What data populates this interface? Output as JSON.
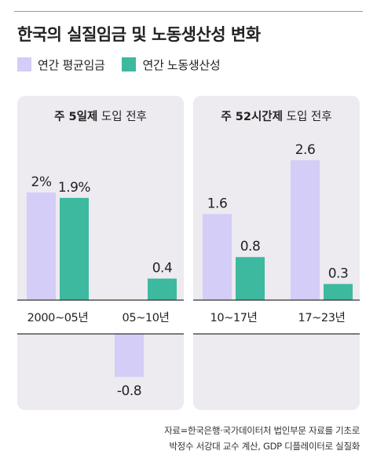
{
  "title": "한국의 실질임금 및 노동생산성 변화",
  "colors": {
    "wage": "#d3cdf7",
    "productivity": "#3db99f",
    "panel": "#edeaf0",
    "axis": "#333333"
  },
  "source": {
    "line1": "자료=한국은행·국가데이터처 법인부문 자료를 기초로",
    "line2": "박정수 서강대 교수 계산, GDP 디플레이터로 실질화"
  },
  "chart_data": {
    "type": "bar",
    "title": "한국의 실질임금 및 노동생산성 변화",
    "legend": {
      "placement": "top-left"
    },
    "categories": [
      "2000~05년",
      "05~10년",
      "10~17년",
      "17~23년"
    ],
    "series": [
      {
        "name": "연간 평균임금",
        "color": "#d3cdf7",
        "values": [
          2,
          -0.8,
          1.6,
          2.6
        ],
        "labels": [
          "2%",
          "-0.8",
          "1.6",
          "2.6"
        ]
      },
      {
        "name": "연간 노동생산성",
        "color": "#3db99f",
        "values": [
          1.9,
          0.4,
          0.8,
          0.3
        ],
        "labels": [
          "1.9%",
          "0.4",
          "0.8",
          "0.3"
        ]
      }
    ],
    "groups": [
      {
        "title_bold": "주 5일제",
        "title_rest": "도입 전후",
        "categories": [
          0,
          1
        ]
      },
      {
        "title_bold": "주 52시간제",
        "title_rest": "도입 전후",
        "categories": [
          2,
          3
        ]
      }
    ],
    "ylim": [
      -0.8,
      2.6
    ],
    "grid": false
  }
}
